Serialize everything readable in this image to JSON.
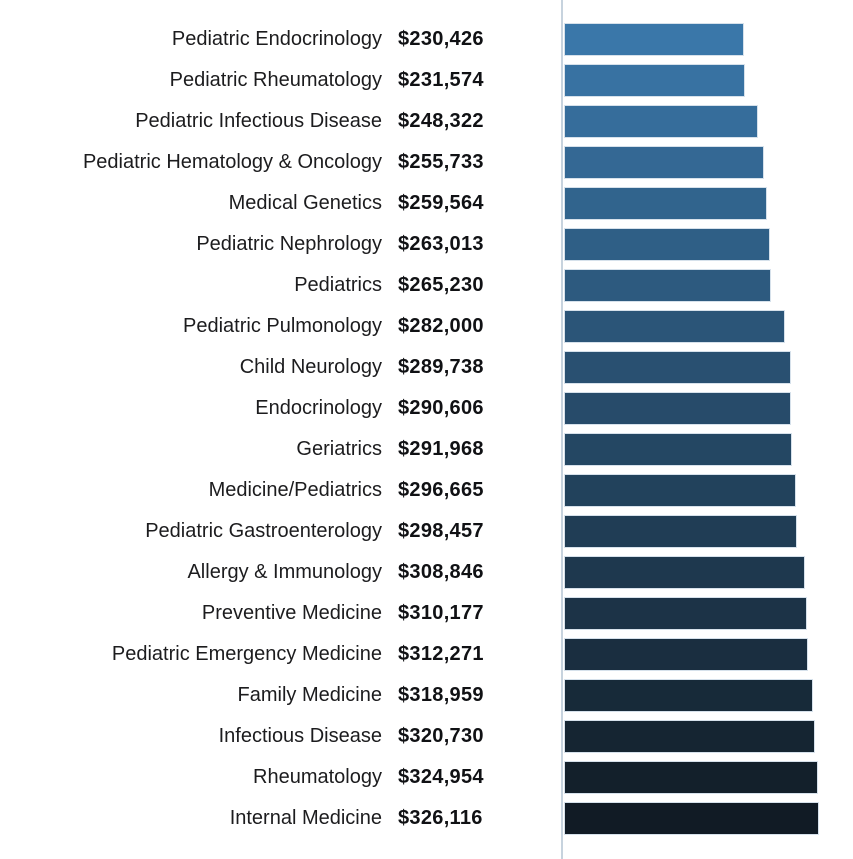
{
  "chart_data": {
    "type": "bar",
    "orientation": "horizontal",
    "title": "",
    "xlabel": "",
    "ylabel": "",
    "xlim": [
      0,
      326116
    ],
    "grid": false,
    "legend": false,
    "categories": [
      "Pediatric Endocrinology",
      "Pediatric Rheumatology",
      "Pediatric Infectious Disease",
      "Pediatric Hematology & Oncology",
      "Medical Genetics",
      "Pediatric Nephrology",
      "Pediatrics",
      "Pediatric Pulmonology",
      "Child Neurology",
      "Endocrinology",
      "Geriatrics",
      "Medicine/Pediatrics",
      "Pediatric Gastroenterology",
      "Allergy & Immunology",
      "Preventive Medicine",
      "Pediatric Emergency Medicine",
      "Family Medicine",
      "Infectious Disease",
      "Rheumatology",
      "Internal Medicine"
    ],
    "values": [
      230426,
      231574,
      248322,
      255733,
      259564,
      263013,
      265230,
      282000,
      289738,
      290606,
      291968,
      296665,
      298457,
      308846,
      310177,
      312271,
      318959,
      320730,
      324954,
      326116
    ],
    "value_labels": [
      "$230,426",
      "$231,574",
      "$248,322",
      "$255,733",
      "$259,564",
      "$263,013",
      "$265,230",
      "$282,000",
      "$289,738",
      "$290,606",
      "$291,968",
      "$296,665",
      "$298,457",
      "$308,846",
      "$310,177",
      "$312,271",
      "$318,959",
      "$320,730",
      "$324,954",
      "$326,116"
    ],
    "bar_colors": [
      "#3a77a9",
      "#3872a2",
      "#366d9b",
      "#346894",
      "#31648d",
      "#2f5f86",
      "#2d5a7f",
      "#2b5578",
      "#295071",
      "#274b6a",
      "#244763",
      "#22425c",
      "#203d55",
      "#1e384e",
      "#1c3347",
      "#1a2e40",
      "#172a39",
      "#152532",
      "#13202b",
      "#111b25"
    ],
    "axis_line_color": "#c7d3de",
    "label_color": "#1c1c1e",
    "value_color": "#101114",
    "background_color": "#ffffff"
  }
}
